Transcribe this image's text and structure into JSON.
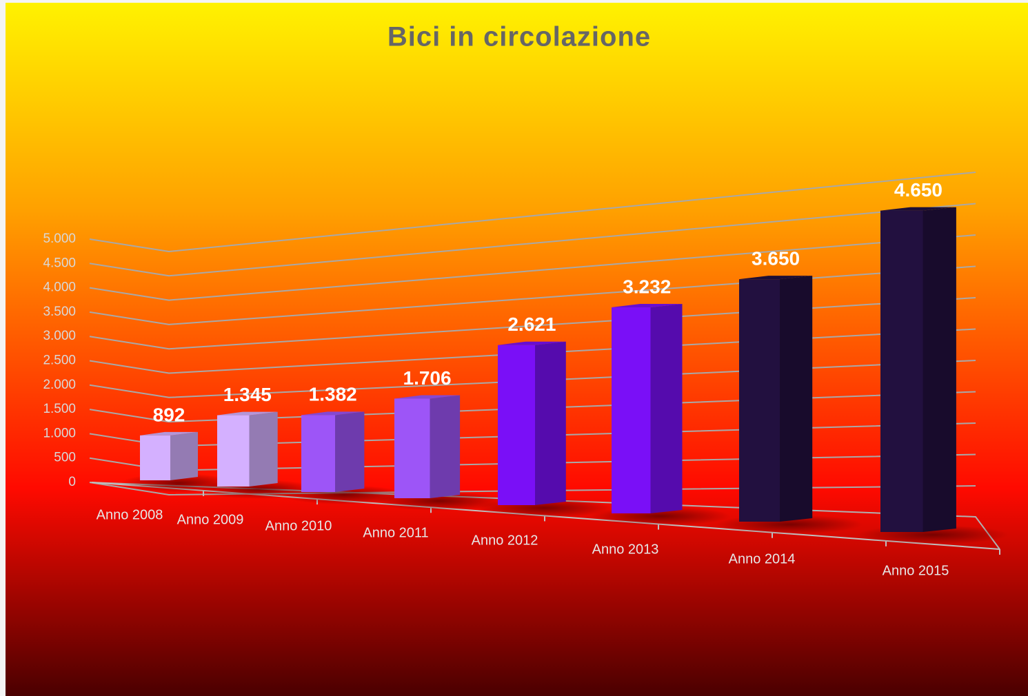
{
  "chart_data": {
    "type": "bar3d",
    "title": "Bici in circolazione",
    "categories": [
      "Anno 2008",
      "Anno 2009",
      "Anno 2010",
      "Anno 2011",
      "Anno 2012",
      "Anno 2013",
      "Anno 2014",
      "Anno 2015"
    ],
    "values": [
      892,
      1345,
      1382,
      1706,
      2621,
      3232,
      3650,
      4650
    ],
    "value_labels": [
      "892",
      "1.345",
      "1.382",
      "1.706",
      "2.621",
      "3.232",
      "3.650",
      "4.650"
    ],
    "colors": [
      "#d4b0ff",
      "#d4b0ff",
      "#9d55f7",
      "#9d55f7",
      "#7a0ff7",
      "#7a0ff7",
      "#22103f",
      "#22103f"
    ],
    "ylim": [
      0,
      5000
    ],
    "yticks": [
      0,
      500,
      {
        "value": 1000,
        "label": "1.000"
      },
      {
        "value": 1500,
        "label": "1.500"
      },
      {
        "value": 2000,
        "label": "2.000"
      },
      {
        "value": 2500,
        "label": "2.500"
      },
      {
        "value": 3000,
        "label": "3.000"
      },
      {
        "value": 3500,
        "label": "3.500"
      },
      {
        "value": 4000,
        "label": "4.000"
      },
      {
        "value": 4500,
        "label": "4.500"
      },
      {
        "value": 5000,
        "label": "5.000"
      }
    ],
    "grid": true
  }
}
